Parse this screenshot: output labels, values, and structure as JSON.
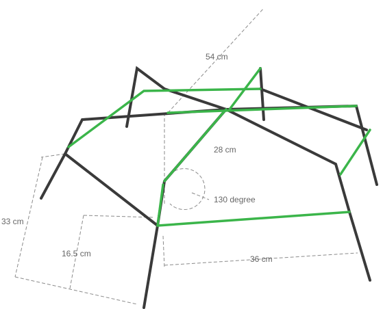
{
  "labels": {
    "top": "54 cm",
    "height": "28 cm",
    "angle": "130 degree",
    "leg_full": "33 cm",
    "leg_half": "16.5 cm",
    "width": "36 cm"
  }
}
